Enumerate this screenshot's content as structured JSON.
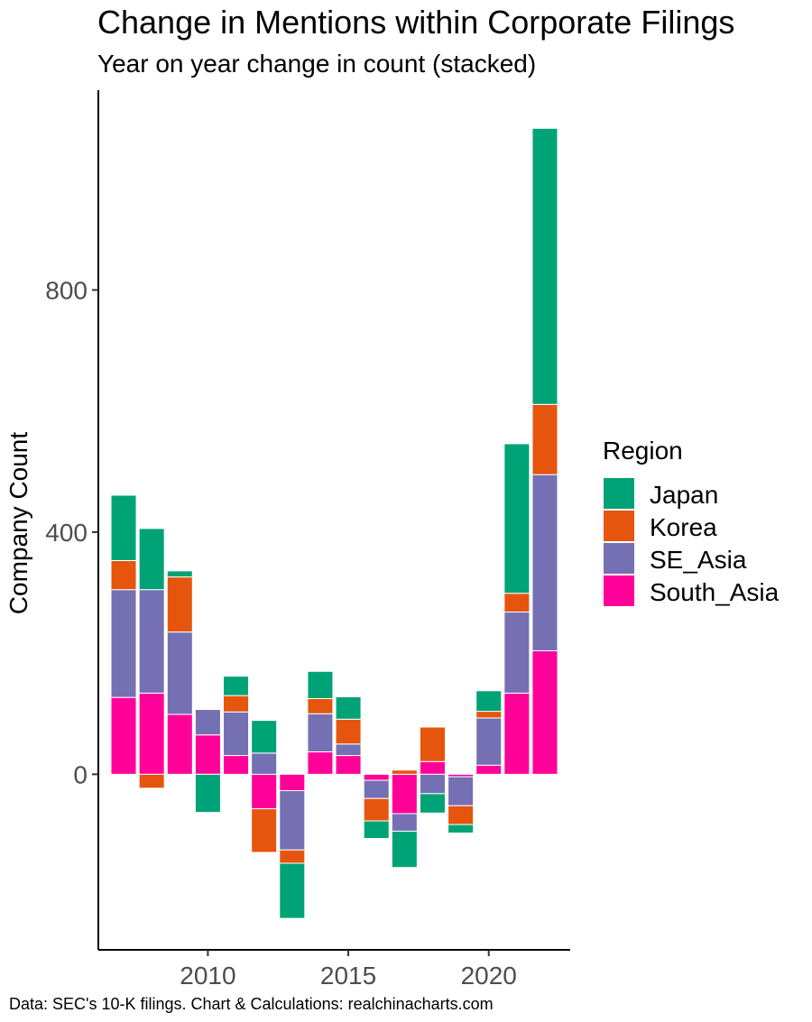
{
  "title": "Change in Mentions within Corporate Filings",
  "subtitle": "Year on year change in count (stacked)",
  "caption": "Data: SEC's 10-K filings. Chart & Calculations: realchinacharts.com",
  "chart_data": {
    "type": "bar",
    "stacked": true,
    "ylabel": "Company Count",
    "xlabel": "",
    "x": [
      2007,
      2008,
      2009,
      2010,
      2011,
      2012,
      2013,
      2014,
      2015,
      2016,
      2017,
      2018,
      2019,
      2020,
      2021,
      2022
    ],
    "x_ticks": [
      2010,
      2015,
      2020
    ],
    "y_ticks": [
      0,
      400,
      800
    ],
    "ylim": [
      -290,
      1130
    ],
    "xlim": [
      2006.1,
      2022.9
    ],
    "grid": false,
    "legend": {
      "title": "Region",
      "position": "right"
    },
    "series": [
      {
        "name": "South_Asia",
        "color": "#ff0099",
        "values": [
          127,
          134,
          99,
          65,
          31,
          -57,
          -27,
          37,
          31,
          -10,
          -65,
          21,
          -4,
          15,
          134,
          204
        ]
      },
      {
        "name": "SE_Asia",
        "color": "#7570b3",
        "values": [
          178,
          171,
          136,
          42,
          72,
          35,
          -98,
          63,
          19,
          -30,
          -29,
          -32,
          -48,
          78,
          134,
          291
        ]
      },
      {
        "name": "Korea",
        "color": "#e6550d",
        "values": [
          48,
          -23,
          91,
          0,
          27,
          -72,
          -22,
          25,
          41,
          -37,
          7,
          57,
          -31,
          11,
          31,
          116
        ]
      },
      {
        "name": "Japan",
        "color": "#00a375",
        "values": [
          108,
          101,
          10,
          -63,
          32,
          54,
          -91,
          45,
          37,
          -29,
          -60,
          -32,
          -14,
          34,
          247,
          456
        ]
      }
    ]
  }
}
